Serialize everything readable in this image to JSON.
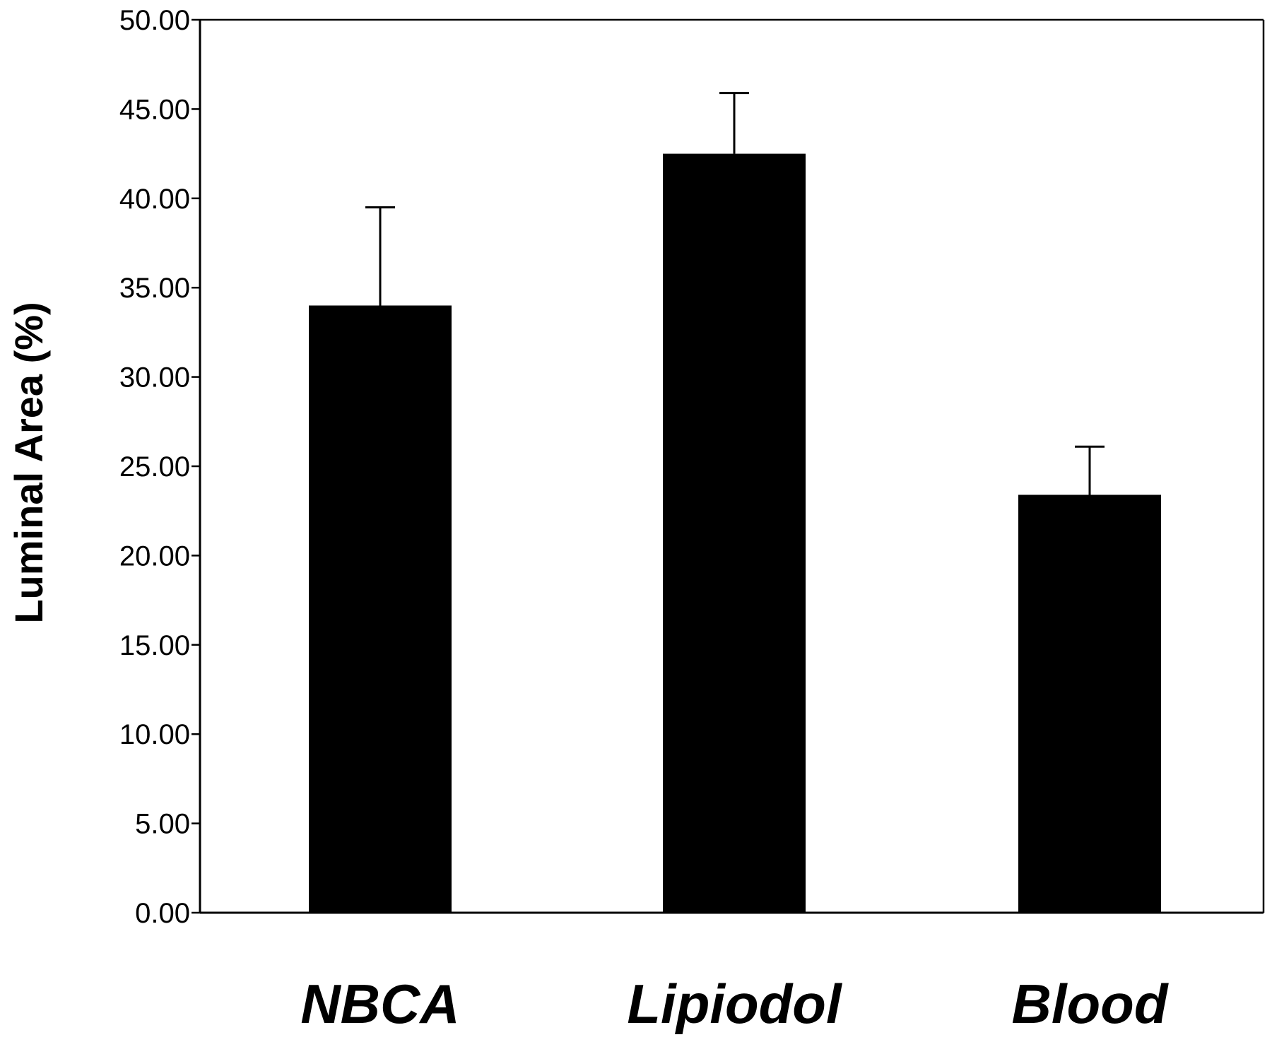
{
  "chart_data": {
    "type": "bar",
    "title": "",
    "xlabel": "",
    "ylabel": "Luminal Area (%)",
    "categories": [
      "NBCA",
      "Lipiodol",
      "Blood"
    ],
    "values": [
      34.0,
      42.5,
      23.4
    ],
    "error_upper": [
      39.5,
      45.9,
      26.1
    ],
    "ylim": [
      0,
      50
    ],
    "yticks": [
      "0.00",
      "5.00",
      "10.00",
      "15.00",
      "20.00",
      "25.00",
      "30.00",
      "35.00",
      "40.00",
      "45.00",
      "50.00"
    ],
    "grid": false,
    "legend": "none",
    "bar_color": "#000000",
    "axis_color": "#000000",
    "background": "#ffffff"
  }
}
